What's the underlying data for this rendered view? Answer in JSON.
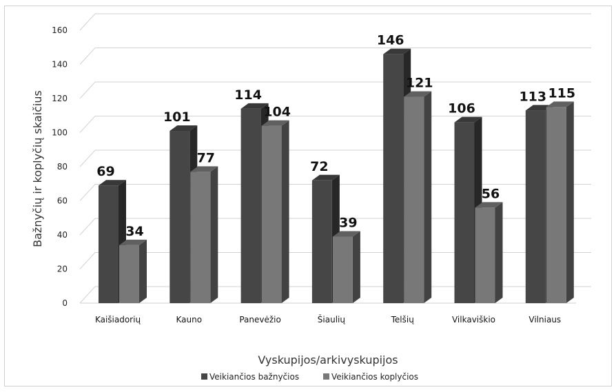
{
  "chart_data": {
    "type": "bar",
    "categories": [
      "Kaišiadorių",
      "Kauno",
      "Panevėžio",
      "Šiaulių",
      "Telšių",
      "Vilkaviškio",
      "Vilniaus"
    ],
    "series": [
      {
        "name": "Veikiančios bažnyčios",
        "values": [
          69,
          101,
          114,
          72,
          146,
          106,
          113
        ],
        "color": "#464646"
      },
      {
        "name": "Veikiančios koplyčios",
        "values": [
          34,
          77,
          104,
          39,
          121,
          56,
          115
        ],
        "color": "#787878"
      }
    ],
    "xlabel": "Vyskupijos/arkivyskupijos",
    "ylabel": "Bažnyčių ir koplyčių skaičius",
    "ylim": [
      0,
      160
    ],
    "yticks": [
      0,
      20,
      40,
      60,
      80,
      100,
      120,
      140,
      160
    ],
    "grid": true,
    "legend": "bottom",
    "style": "3d-clustered-column"
  }
}
